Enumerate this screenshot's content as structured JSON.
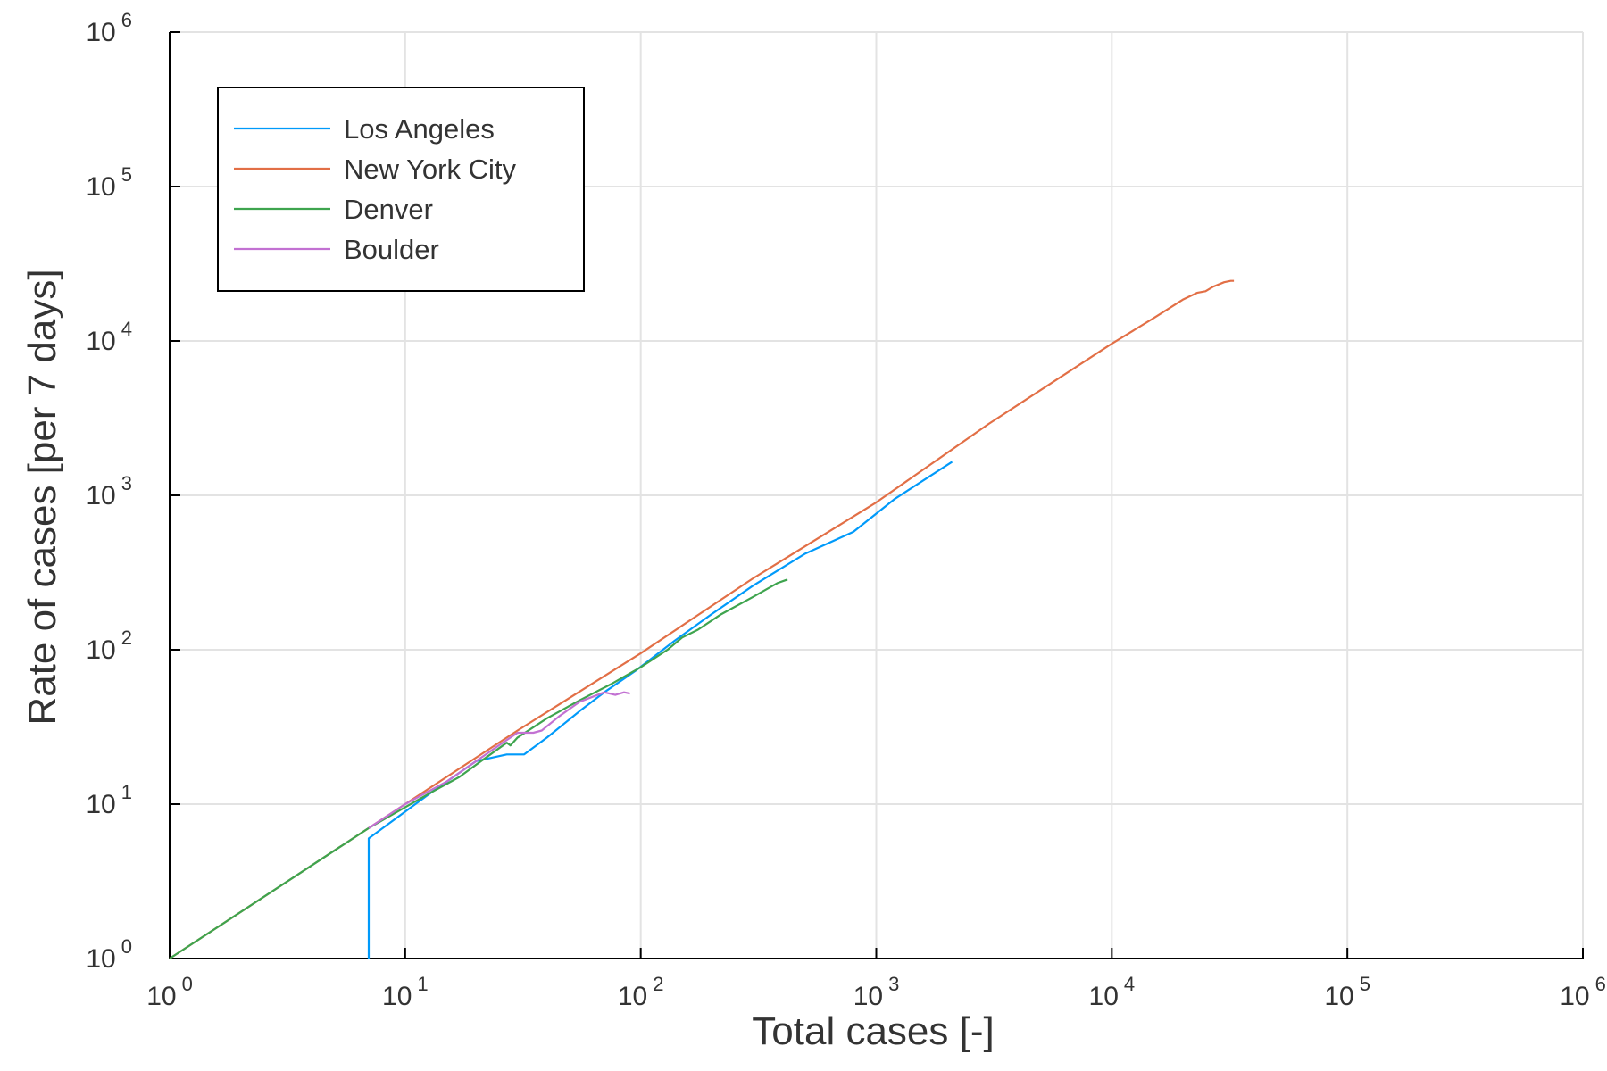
{
  "chart_data": {
    "type": "line",
    "title": "",
    "xlabel": "Total cases [-]",
    "ylabel": "Rate of cases [per 7 days]",
    "xscale": "log",
    "yscale": "log",
    "xlim": [
      1,
      1000000
    ],
    "ylim": [
      1,
      1000000
    ],
    "x_ticks": [
      {
        "base": "10",
        "exp": "0"
      },
      {
        "base": "10",
        "exp": "1"
      },
      {
        "base": "10",
        "exp": "2"
      },
      {
        "base": "10",
        "exp": "3"
      },
      {
        "base": "10",
        "exp": "4"
      },
      {
        "base": "10",
        "exp": "5"
      },
      {
        "base": "10",
        "exp": "6"
      }
    ],
    "y_ticks": [
      {
        "base": "10",
        "exp": "0"
      },
      {
        "base": "10",
        "exp": "1"
      },
      {
        "base": "10",
        "exp": "2"
      },
      {
        "base": "10",
        "exp": "3"
      },
      {
        "base": "10",
        "exp": "4"
      },
      {
        "base": "10",
        "exp": "5"
      },
      {
        "base": "10",
        "exp": "6"
      }
    ],
    "grid": true,
    "legend": "top-left",
    "series": [
      {
        "name": "Los Angeles",
        "color": "#009AFA",
        "x": [
          7,
          7,
          13,
          20,
          27,
          32,
          40,
          55,
          70,
          95,
          140,
          200,
          300,
          500,
          800,
          1200,
          2100
        ],
        "y": [
          1,
          6,
          12,
          19,
          21,
          21,
          27,
          40,
          53,
          73,
          115,
          170,
          260,
          420,
          580,
          950,
          1650
        ]
      },
      {
        "name": "New York City",
        "color": "#E26F46",
        "x": [
          1,
          3,
          10,
          30,
          100,
          300,
          1000,
          3000,
          10000,
          15000,
          20000,
          23000,
          25000,
          27000,
          30000,
          32000,
          33000
        ],
        "y": [
          1,
          3,
          10,
          30,
          95,
          290,
          900,
          2900,
          9600,
          14000,
          18500,
          20500,
          21000,
          22500,
          24000,
          24500,
          24500
        ]
      },
      {
        "name": "Denver",
        "color": "#3EA44E",
        "x": [
          1,
          7,
          13,
          17,
          21,
          27,
          28,
          30,
          40,
          55,
          75,
          100,
          130,
          150,
          175,
          220,
          300,
          380,
          420
        ],
        "y": [
          1,
          7,
          12,
          15,
          19,
          25,
          24,
          27,
          36,
          47,
          60,
          77,
          100,
          120,
          135,
          170,
          220,
          270,
          285
        ]
      },
      {
        "name": "Boulder",
        "color": "#C271D2",
        "x": [
          7,
          10,
          15,
          20,
          25,
          30,
          35,
          38,
          45,
          55,
          70,
          78,
          85,
          90
        ],
        "y": [
          7,
          10,
          14,
          19,
          24,
          29,
          29,
          30,
          37,
          46,
          53,
          51,
          53,
          52
        ]
      }
    ]
  }
}
